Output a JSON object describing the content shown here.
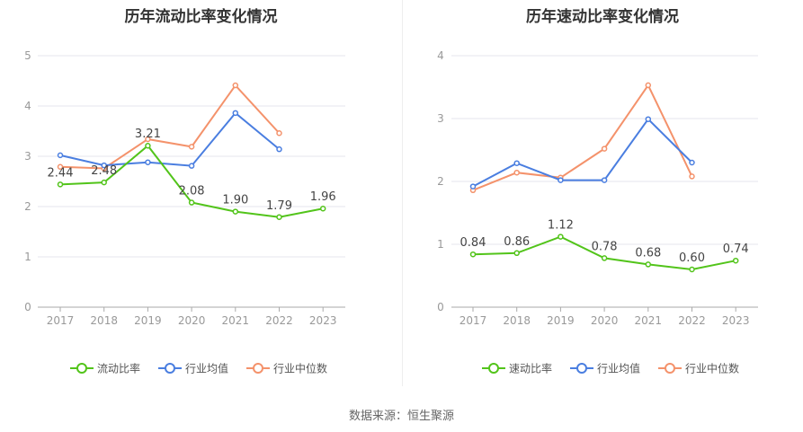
{
  "source_label": "数据来源：恒生聚源",
  "chart_data": [
    {
      "type": "line",
      "title": "历年流动比率变化情况",
      "categories": [
        "2017",
        "2018",
        "2019",
        "2020",
        "2021",
        "2022",
        "2023"
      ],
      "ylim": [
        0,
        5
      ],
      "yticks": [
        0,
        1,
        2,
        3,
        4,
        5
      ],
      "grid": true,
      "legend": "bottom",
      "series": [
        {
          "name": "流动比率",
          "color": "#52c41a",
          "values": [
            2.44,
            2.48,
            3.21,
            2.08,
            1.9,
            1.79,
            1.96
          ],
          "labels": [
            "2.44",
            "2.48",
            "3.21",
            "2.08",
            "1.90",
            "1.79",
            "1.96"
          ]
        },
        {
          "name": "行业均值",
          "color": "#4a7ee0",
          "values": [
            3.02,
            2.82,
            2.88,
            2.81,
            3.86,
            3.14,
            null
          ]
        },
        {
          "name": "行业中位数",
          "color": "#f4926b",
          "values": [
            2.79,
            2.76,
            3.34,
            3.19,
            4.41,
            3.46,
            null
          ]
        }
      ]
    },
    {
      "type": "line",
      "title": "历年速动比率变化情况",
      "categories": [
        "2017",
        "2018",
        "2019",
        "2020",
        "2021",
        "2022",
        "2023"
      ],
      "ylim": [
        0,
        4
      ],
      "yticks": [
        0,
        1,
        2,
        3,
        4
      ],
      "grid": true,
      "legend": "bottom",
      "series": [
        {
          "name": "速动比率",
          "color": "#52c41a",
          "values": [
            0.84,
            0.86,
            1.12,
            0.78,
            0.68,
            0.6,
            0.74
          ],
          "labels": [
            "0.84",
            "0.86",
            "1.12",
            "0.78",
            "0.68",
            "0.60",
            "0.74"
          ]
        },
        {
          "name": "行业均值",
          "color": "#4a7ee0",
          "values": [
            1.92,
            2.29,
            2.02,
            2.02,
            2.99,
            2.3,
            null
          ]
        },
        {
          "name": "行业中位数",
          "color": "#f4926b",
          "values": [
            1.86,
            2.14,
            2.06,
            2.52,
            3.53,
            2.08,
            null
          ]
        }
      ]
    }
  ]
}
